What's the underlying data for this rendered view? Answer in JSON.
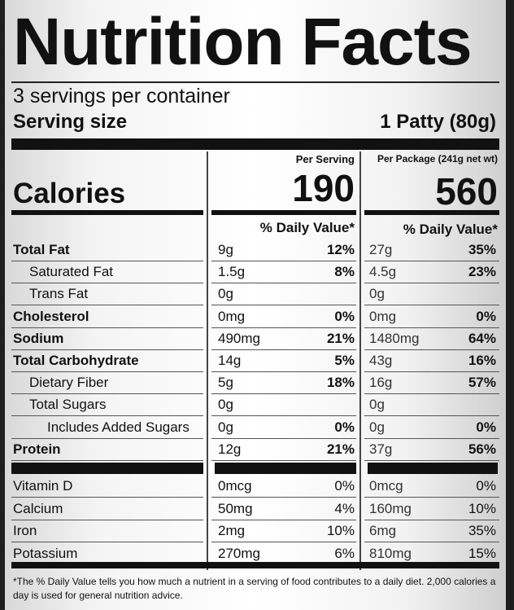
{
  "title": "Nutrition Facts",
  "servings_per_container": "3 servings per container",
  "serving_size_label": "Serving size",
  "serving_size_value": "1 Patty (80g)",
  "columns": {
    "per_serving": "Per Serving",
    "per_package": "Per Package (241g net wt)",
    "daily_value_header": "% Daily Value*"
  },
  "calories": {
    "label": "Calories",
    "per_serving": "190",
    "per_package": "560"
  },
  "nutrients": [
    {
      "name": "Total Fat",
      "ps_amt": "9g",
      "ps_dv": "12%",
      "pp_amt": "27g",
      "pp_dv": "35%"
    },
    {
      "name": "Saturated Fat",
      "ps_amt": "1.5g",
      "ps_dv": "8%",
      "pp_amt": "4.5g",
      "pp_dv": "23%"
    },
    {
      "name": "Trans Fat",
      "ps_amt": "0g",
      "ps_dv": "",
      "pp_amt": "0g",
      "pp_dv": ""
    },
    {
      "name": "Cholesterol",
      "ps_amt": "0mg",
      "ps_dv": "0%",
      "pp_amt": "0mg",
      "pp_dv": "0%"
    },
    {
      "name": "Sodium",
      "ps_amt": "490mg",
      "ps_dv": "21%",
      "pp_amt": "1480mg",
      "pp_dv": "64%"
    },
    {
      "name": "Total Carbohydrate",
      "ps_amt": "14g",
      "ps_dv": "5%",
      "pp_amt": "43g",
      "pp_dv": "16%"
    },
    {
      "name": "Dietary Fiber",
      "ps_amt": "5g",
      "ps_dv": "18%",
      "pp_amt": "16g",
      "pp_dv": "57%"
    },
    {
      "name": "Total Sugars",
      "ps_amt": "0g",
      "ps_dv": "",
      "pp_amt": "0g",
      "pp_dv": ""
    },
    {
      "name": "Includes Added Sugars",
      "ps_amt": "0g",
      "ps_dv": "0%",
      "pp_amt": "0g",
      "pp_dv": "0%"
    },
    {
      "name": "Protein",
      "ps_amt": "12g",
      "ps_dv": "21%",
      "pp_amt": "37g",
      "pp_dv": "56%"
    }
  ],
  "vitamins": [
    {
      "name": "Vitamin D",
      "ps_amt": "0mcg",
      "ps_dv": "0%",
      "pp_amt": "0mcg",
      "pp_dv": "0%"
    },
    {
      "name": "Calcium",
      "ps_amt": "50mg",
      "ps_dv": "4%",
      "pp_amt": "160mg",
      "pp_dv": "10%"
    },
    {
      "name": "Iron",
      "ps_amt": "2mg",
      "ps_dv": "10%",
      "pp_amt": "6mg",
      "pp_dv": "35%"
    },
    {
      "name": "Potassium",
      "ps_amt": "270mg",
      "ps_dv": "6%",
      "pp_amt": "810mg",
      "pp_dv": "15%"
    }
  ],
  "footnote": "*The % Daily Value tells you how much a nutrient in a serving of food contributes to a daily diet. 2,000 calories a day is used for general nutrition advice."
}
